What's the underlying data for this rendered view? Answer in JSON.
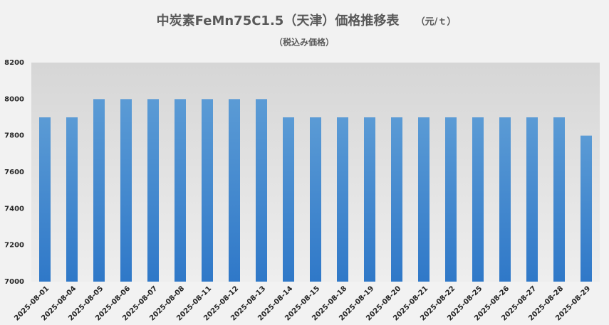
{
  "chart_data": {
    "type": "bar",
    "title": "中炭素FeMn75C1.5（天津）価格推移表",
    "unit": "（元/ｔ）",
    "subtitle": "（税込み価格）",
    "categories": [
      "2025-08-01",
      "2025-08-04",
      "2025-08-05",
      "2025-08-06",
      "2025-08-07",
      "2025-08-08",
      "2025-08-11",
      "2025-08-12",
      "2025-08-13",
      "2025-08-14",
      "2025-08-15",
      "2025-08-18",
      "2025-08-19",
      "2025-08-20",
      "2025-08-21",
      "2025-08-22",
      "2025-08-25",
      "2025-08-26",
      "2025-08-27",
      "2025-08-28",
      "2025-08-29"
    ],
    "values": [
      7900,
      7900,
      8000,
      8000,
      8000,
      8000,
      8000,
      8000,
      8000,
      7900,
      7900,
      7900,
      7900,
      7900,
      7900,
      7900,
      7900,
      7900,
      7900,
      7900,
      7800
    ],
    "color": "#5b9bd5",
    "ylim": [
      7000,
      8200
    ],
    "yticks": [
      7000,
      7200,
      7400,
      7600,
      7800,
      8000,
      8200
    ],
    "grid": false
  }
}
